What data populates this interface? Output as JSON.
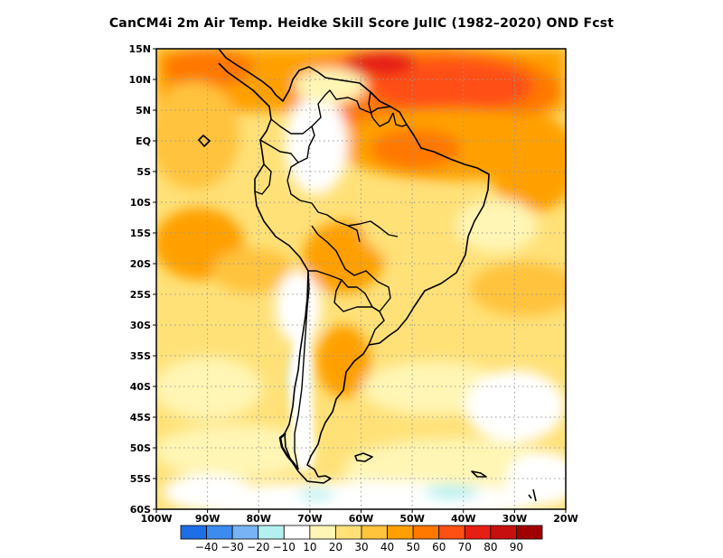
{
  "title": "CanCM4i  2m Air Temp. Heidke Skill Score JulIC (1982–2020) OND Fcst",
  "map": {
    "lon_range": [
      -100,
      -20
    ],
    "lat_range": [
      -60,
      15
    ],
    "lat_ticks": [
      {
        "value": 15,
        "label": "15N"
      },
      {
        "value": 10,
        "label": "10N"
      },
      {
        "value": 5,
        "label": "5N"
      },
      {
        "value": 0,
        "label": "EQ"
      },
      {
        "value": -5,
        "label": "5S"
      },
      {
        "value": -10,
        "label": "10S"
      },
      {
        "value": -15,
        "label": "15S"
      },
      {
        "value": -20,
        "label": "20S"
      },
      {
        "value": -25,
        "label": "25S"
      },
      {
        "value": -30,
        "label": "30S"
      },
      {
        "value": -35,
        "label": "35S"
      },
      {
        "value": -40,
        "label": "40S"
      },
      {
        "value": -45,
        "label": "45S"
      },
      {
        "value": -50,
        "label": "50S"
      },
      {
        "value": -55,
        "label": "55S"
      },
      {
        "value": -60,
        "label": "60S"
      }
    ],
    "lon_ticks": [
      {
        "value": -100,
        "label": "100W"
      },
      {
        "value": -90,
        "label": "90W"
      },
      {
        "value": -80,
        "label": "80W"
      },
      {
        "value": -70,
        "label": "70W"
      },
      {
        "value": -60,
        "label": "60W"
      },
      {
        "value": -50,
        "label": "50W"
      },
      {
        "value": -40,
        "label": "40W"
      },
      {
        "value": -30,
        "label": "30W"
      },
      {
        "value": -20,
        "label": "20W"
      }
    ],
    "grid": "dotted"
  },
  "colorbar": {
    "colors": [
      "#1e6ee6",
      "#3c8cf0",
      "#78b4f5",
      "#b4f0f0",
      "#ffffff",
      "#fff5b4",
      "#ffe178",
      "#ffc33c",
      "#ffa000",
      "#ff7800",
      "#ff5014",
      "#e61e14",
      "#c80f0f",
      "#a00000"
    ],
    "labels": [
      "−40",
      "−30",
      "−20",
      "−10",
      "10",
      "20",
      "30",
      "40",
      "50",
      "60",
      "70",
      "80",
      "90"
    ]
  }
}
